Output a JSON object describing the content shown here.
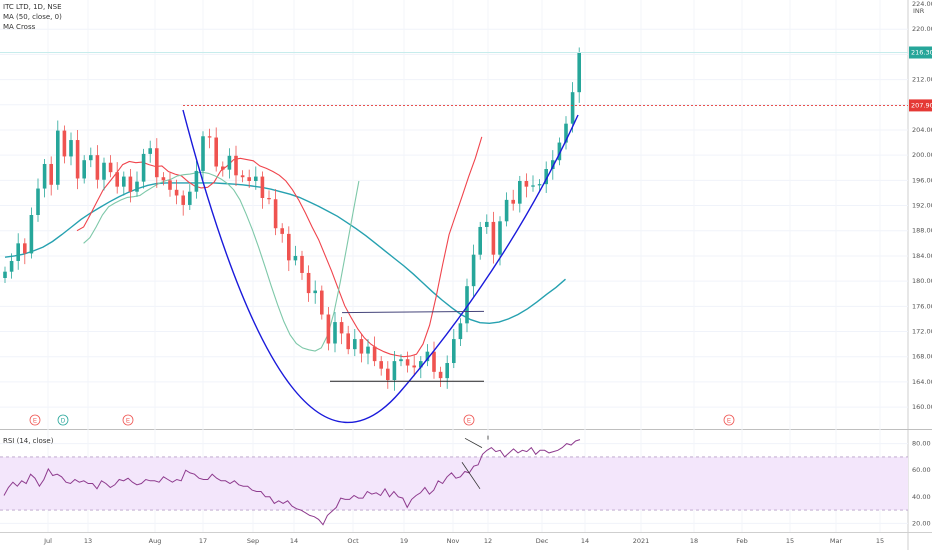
{
  "legend": {
    "title": "ITC LTD, 1D, NSE",
    "ma": "MA (50, close, 0)",
    "cross": "MA Cross",
    "rsi": "RSI (14, close)"
  },
  "currency": "INR",
  "top_axis_label": "224.00",
  "colors": {
    "up": "#26a69a",
    "down": "#ef5350",
    "ma50": "#26a1b0",
    "cross_fast": "#f0444c",
    "cross_slow": "#7ec8a9",
    "cup": "#1a1adb",
    "rsi": "#8e3b8e",
    "rsi_band": "#f3e6fb",
    "last_price": "#26a69a",
    "resistance": "#e53935"
  },
  "chart_data": {
    "type": "candlestick",
    "symbol": "ITC LTD",
    "interval": "1D",
    "exchange": "NSE",
    "y_ticks": [
      "160.00",
      "164.00",
      "168.00",
      "172.00",
      "176.00",
      "180.00",
      "184.00",
      "188.00",
      "192.00",
      "196.00",
      "200.00",
      "204.00",
      "208.00",
      "212.00",
      "216.00",
      "220.00"
    ],
    "ylim": [
      157,
      224
    ],
    "x_ticks": [
      "Jul",
      "13",
      "Aug",
      "17",
      "Sep",
      "14",
      "Oct",
      "19",
      "Nov",
      "12",
      "Dec",
      "14",
      "2021",
      "18",
      "Feb",
      "15",
      "Mar",
      "15"
    ],
    "last_price": "216.30",
    "level_price": "207.90",
    "closes": [
      181.5,
      183.2,
      186.0,
      184.4,
      190.5,
      194.7,
      198.6,
      195.3,
      203.9,
      199.8,
      202.4,
      196.3,
      199.2,
      200.0,
      196.1,
      198.8,
      197.3,
      195.0,
      196.6,
      194.2,
      195.8,
      200.2,
      201.1,
      196.5,
      196.0,
      194.5,
      193.6,
      192.1,
      194.2,
      197.5,
      203.0,
      202.8,
      198.2,
      197.7,
      199.9,
      196.8,
      196.5,
      195.9,
      196.6,
      193.2,
      193.0,
      188.4,
      187.5,
      183.3,
      184.0,
      181.3,
      178.1,
      178.5,
      174.7,
      170.1,
      173.5,
      171.7,
      169.2,
      170.8,
      168.5,
      169.6,
      167.3,
      166.1,
      164.3,
      167.3,
      167.6,
      166.6,
      166.3,
      167.3,
      168.8,
      165.6,
      164.6,
      167.0,
      170.8,
      173.3,
      179.2,
      184.2,
      188.6,
      189.4,
      184.2,
      189.5,
      192.9,
      192.3,
      195.9,
      195.0,
      195.2,
      195.4,
      197.8,
      199.2,
      202.0,
      205.0,
      210.0,
      216.3
    ],
    "series": [
      {
        "name": "MA (50, close, 0)",
        "values": [
          183.8,
          184.0,
          184.3,
          184.8,
          185.4,
          186.3,
          187.4,
          188.6,
          189.8,
          190.8,
          191.7,
          192.6,
          193.4,
          194.1,
          194.7,
          195.2,
          195.5,
          195.6,
          195.6,
          195.6,
          195.6,
          195.6,
          195.6,
          195.5,
          195.4,
          195.3,
          195.1,
          194.9,
          194.6,
          194.2,
          193.8,
          193.3,
          192.6,
          191.9,
          191.1,
          190.3,
          189.3,
          188.3,
          187.2,
          186.0,
          184.8,
          183.6,
          182.4,
          181.1,
          179.7,
          178.3,
          177.0,
          175.8,
          174.7,
          173.9,
          173.4,
          173.3,
          173.5,
          174.0,
          174.7,
          175.6,
          176.7,
          177.9,
          179.0,
          180.3
        ]
      },
      {
        "name": "MA fast",
        "values": [
          188.0,
          188.6,
          190.5,
          192.5,
          194.5,
          195.8,
          197.1,
          198.5,
          199.0,
          198.8,
          198.9,
          198.5,
          198.2,
          198.3,
          197.4,
          197.0,
          196.7,
          195.8,
          195.1,
          194.8,
          194.9,
          195.7,
          197.5,
          198.3,
          199.3,
          199.5,
          199.3,
          199.1,
          198.3,
          197.9,
          197.4,
          196.8,
          195.9,
          194.5,
          192.8,
          190.8,
          188.6,
          186.6,
          184.1,
          181.6,
          178.8,
          176.1,
          174.2,
          172.4,
          171.0,
          170.0,
          169.3,
          168.8,
          168.4,
          168.2,
          168.0,
          168.1,
          168.4,
          170.0,
          173.0,
          177.5,
          182.6,
          187.4,
          190.5,
          193.5,
          196.6,
          199.5,
          202.9
        ]
      },
      {
        "name": "MA slow",
        "values": [
          186.0,
          186.9,
          188.6,
          190.5,
          191.8,
          192.4,
          192.9,
          193.3,
          193.4,
          193.6,
          194.3,
          194.9,
          195.5,
          195.9,
          196.2,
          196.7,
          196.9,
          197.0,
          197.2,
          197.3,
          197.1,
          196.7,
          196.2,
          195.5,
          194.5,
          192.9,
          190.6,
          188.1,
          185.3,
          182.3,
          179.2,
          176.3,
          173.6,
          171.5,
          170.1,
          169.4,
          169.1,
          168.9,
          169.4,
          171.4,
          174.9,
          179.7,
          185.1,
          190.5,
          195.9
        ]
      }
    ],
    "rsi": {
      "name": "RSI (14, close)",
      "y_ticks": [
        "20.00",
        "40.00",
        "60.00",
        "80.00"
      ],
      "ylim": [
        15,
        88
      ],
      "band": [
        30,
        70
      ],
      "values": [
        41,
        47,
        51,
        48,
        52,
        50,
        57,
        54,
        48,
        53,
        61,
        56,
        57,
        55,
        51,
        50,
        53,
        51,
        52,
        50,
        50,
        46,
        52,
        50,
        47,
        49,
        53,
        52,
        54,
        51,
        49,
        50,
        53,
        52,
        52,
        51,
        55,
        53,
        51,
        53,
        52,
        60,
        58,
        57,
        54,
        53,
        53,
        57,
        54,
        52,
        52,
        50,
        52,
        49,
        48,
        48,
        45,
        44,
        44,
        40,
        40,
        35,
        37,
        35,
        37,
        33,
        31,
        30,
        28,
        26,
        25,
        23,
        19,
        26,
        29,
        32,
        39,
        38,
        38,
        41,
        39,
        39,
        44,
        42,
        43,
        41,
        46,
        40,
        44,
        40,
        39,
        32,
        38,
        41,
        43,
        47,
        42,
        45,
        52,
        50,
        55,
        58,
        54,
        55,
        59,
        58,
        63,
        64,
        72,
        75,
        77,
        74,
        75,
        70,
        73,
        76,
        73,
        75,
        74,
        77,
        72,
        75,
        75,
        73,
        74,
        75,
        77,
        80,
        79,
        82,
        83
      ]
    }
  }
}
